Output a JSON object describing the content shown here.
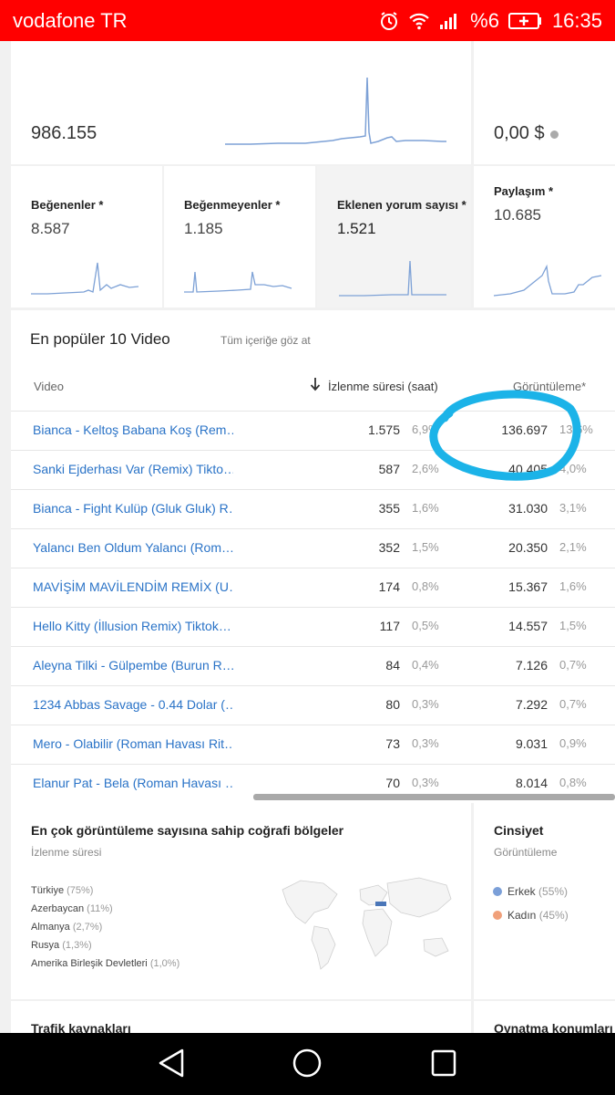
{
  "status_bar": {
    "carrier": "vodafone TR",
    "battery": "%6",
    "time": "16:35"
  },
  "top_metrics": {
    "views_total": "986.155",
    "revenue": "0,00 $"
  },
  "metrics": [
    {
      "label": "Beğenenler *",
      "value": "8.587"
    },
    {
      "label": "Beğenmeyenler *",
      "value": "1.185"
    },
    {
      "label": "Eklenen yorum sayısı *",
      "value": "1.521"
    },
    {
      "label": "Paylaşım *",
      "value": "10.685"
    }
  ],
  "top_videos": {
    "title": "En popüler 10 Video",
    "browse_link": "Tüm içeriğe göz at",
    "columns": {
      "video": "Video",
      "watch_time": "İzlenme süresi (saat)",
      "views": "Görüntüleme*"
    },
    "rows": [
      {
        "title": "Bianca - Keltoş Babana Koş (Rem…",
        "watch": "1.575",
        "watch_pct": "6,9%",
        "views": "136.697",
        "views_pct": "13,6%"
      },
      {
        "title": "Sanki Ejderhası Var (Remix) Tikto…",
        "watch": "587",
        "watch_pct": "2,6%",
        "views": "40.405",
        "views_pct": "4,0%"
      },
      {
        "title": "Bianca - Fight Kulüp (Gluk Gluk) R…",
        "watch": "355",
        "watch_pct": "1,6%",
        "views": "31.030",
        "views_pct": "3,1%"
      },
      {
        "title": "Yalancı Ben Oldum Yalancı (Rom…",
        "watch": "352",
        "watch_pct": "1,5%",
        "views": "20.350",
        "views_pct": "2,1%"
      },
      {
        "title": "MAVİŞİM MAVİLENDİM REMİX (U…",
        "watch": "174",
        "watch_pct": "0,8%",
        "views": "15.367",
        "views_pct": "1,6%"
      },
      {
        "title": "Hello Kitty (İllusion Remix) Tiktok…",
        "watch": "117",
        "watch_pct": "0,5%",
        "views": "14.557",
        "views_pct": "1,5%"
      },
      {
        "title": "Aleyna Tilki - Gülpembe (Burun R…",
        "watch": "84",
        "watch_pct": "0,4%",
        "views": "7.126",
        "views_pct": "0,7%"
      },
      {
        "title": "1234 Abbas Savage - 0.44 Dolar (…",
        "watch": "80",
        "watch_pct": "0,3%",
        "views": "7.292",
        "views_pct": "0,7%"
      },
      {
        "title": "Mero - Olabilir (Roman Havası Rit…",
        "watch": "73",
        "watch_pct": "0,3%",
        "views": "9.031",
        "views_pct": "0,9%"
      },
      {
        "title": "Elanur Pat - Bela (Roman Havası …",
        "watch": "70",
        "watch_pct": "0,3%",
        "views": "8.014",
        "views_pct": "0,8%"
      }
    ]
  },
  "geography": {
    "title": "En çok görüntüleme sayısına sahip coğrafi bölgeler",
    "subtitle": "İzlenme süresi",
    "items": [
      {
        "name": "Türkiye",
        "pct": "(75%)"
      },
      {
        "name": "Azerbaycan",
        "pct": "(11%)"
      },
      {
        "name": "Almanya",
        "pct": "(2,7%)"
      },
      {
        "name": "Rusya",
        "pct": "(1,3%)"
      },
      {
        "name": "Amerika Birleşik Devletleri",
        "pct": "(1,0%)"
      }
    ]
  },
  "gender": {
    "title": "Cinsiyet",
    "subtitle": "Görüntüleme",
    "items": [
      {
        "name": "Erkek",
        "pct": "(55%)",
        "color": "#7b9fd8"
      },
      {
        "name": "Kadın",
        "pct": "(45%)",
        "color": "#f0a07a"
      }
    ]
  },
  "bottom_sections": {
    "traffic": "Trafik kaynakları",
    "playback": "Oynatma konumları"
  },
  "colors": {
    "status_bar": "#ff0000",
    "link": "#2a73c7",
    "sparkline": "#7da1d6",
    "annotation": "#1bb3e8"
  }
}
